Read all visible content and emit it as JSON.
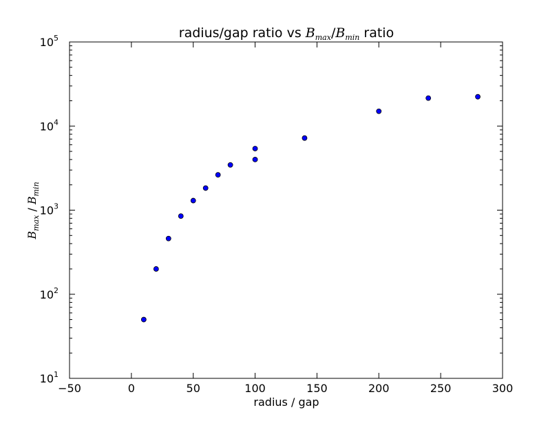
{
  "chart_data": {
    "type": "scatter",
    "title": {
      "prefix": "radius/gap ratio vs ",
      "num_symbol": "B",
      "num_sub": "max",
      "slash": "/",
      "den_symbol": "B",
      "den_sub": "min",
      "suffix": " ratio"
    },
    "xlabel": "radius / gap",
    "ylabel": {
      "num_symbol": "B",
      "num_sub": "max",
      "slash": " / ",
      "den_symbol": "B",
      "den_sub": "min"
    },
    "xlim": [
      -50,
      300
    ],
    "ylim": [
      10,
      100000
    ],
    "yscale": "log",
    "grid": false,
    "x_ticks": [
      "−50",
      "0",
      "50",
      "100",
      "150",
      "200",
      "250",
      "300"
    ],
    "x_tick_values": [
      -50,
      0,
      50,
      100,
      150,
      200,
      250,
      300
    ],
    "y_ticks": [
      {
        "base": "10",
        "exp": "1",
        "value": 10
      },
      {
        "base": "10",
        "exp": "2",
        "value": 100
      },
      {
        "base": "10",
        "exp": "3",
        "value": 1000
      },
      {
        "base": "10",
        "exp": "4",
        "value": 10000
      },
      {
        "base": "10",
        "exp": "5",
        "value": 100000
      }
    ],
    "marker_color": "#0000ff",
    "x": [
      10,
      20,
      30,
      40,
      50,
      60,
      70,
      80,
      100,
      100,
      140,
      200,
      240,
      280
    ],
    "y": [
      50,
      200,
      460,
      850,
      1300,
      1830,
      2630,
      3450,
      4000,
      5400,
      7200,
      15000,
      21500,
      22300
    ]
  }
}
